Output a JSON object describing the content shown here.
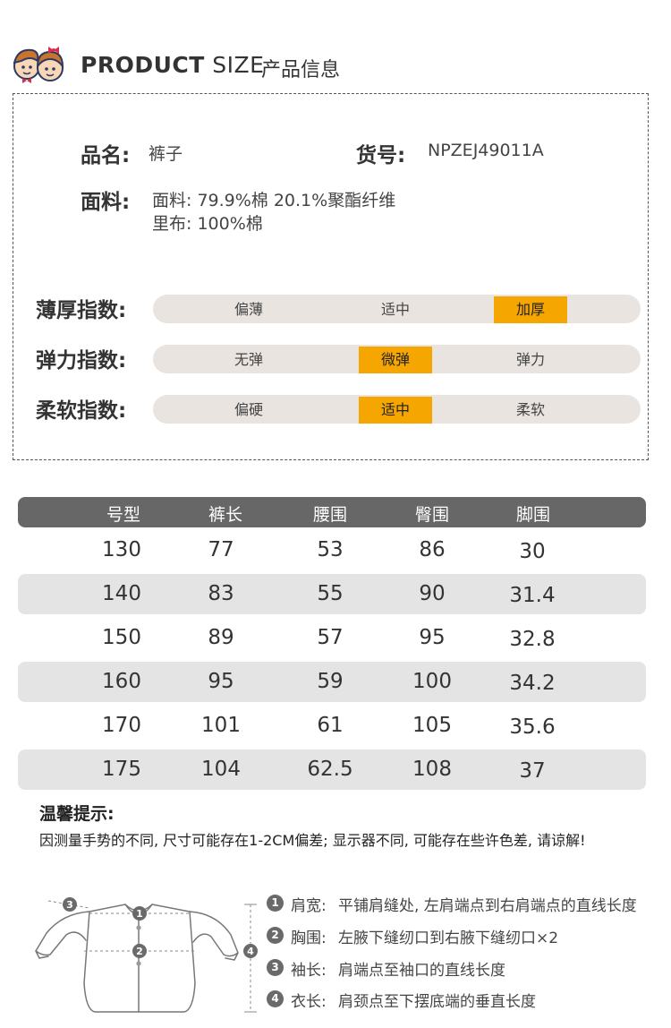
{
  "header": {
    "title_en_bold": "PRODUCT",
    "title_en_light": "SIZE",
    "title_cn": "产品信息"
  },
  "product": {
    "name_label": "品名:",
    "name_value": "裤子",
    "sku_label": "货号:",
    "sku_value": "NPZEJ49011A",
    "fabric_label": "面料:",
    "fabric_line1": "面料: 79.9%棉 20.1%聚酯纤维",
    "fabric_line2": "里布: 100%棉"
  },
  "indices": [
    {
      "label": "薄厚指数:",
      "options": [
        "偏薄",
        "适中",
        "加厚"
      ],
      "selected": 2
    },
    {
      "label": "弹力指数:",
      "options": [
        "无弹",
        "微弹",
        "弹力"
      ],
      "selected": 1
    },
    {
      "label": "柔软指数:",
      "options": [
        "偏硬",
        "适中",
        "柔软"
      ],
      "selected": 1
    }
  ],
  "size_table": {
    "headers": [
      "号型",
      "裤长",
      "腰围",
      "臀围",
      "脚围"
    ],
    "rows": [
      [
        "130",
        "77",
        "53",
        "86",
        "30"
      ],
      [
        "140",
        "83",
        "55",
        "90",
        "31.4"
      ],
      [
        "150",
        "89",
        "57",
        "95",
        "32.8"
      ],
      [
        "160",
        "95",
        "59",
        "100",
        "34.2"
      ],
      [
        "170",
        "101",
        "61",
        "105",
        "35.6"
      ],
      [
        "175",
        "104",
        "62.5",
        "108",
        "37"
      ]
    ]
  },
  "tips": {
    "title": "温馨提示:",
    "text": "因测量手势的不同, 尺寸可能存在1-2CM偏差; 显示器不同, 可能存在些许色差, 请谅解!"
  },
  "measure_guide": [
    {
      "num": "1",
      "key": "肩宽:",
      "desc": "平铺肩缝处, 左肩端点到右肩端点的直线长度"
    },
    {
      "num": "2",
      "key": "胸围:",
      "desc": "左腋下缝纫口到右腋下缝纫口×2"
    },
    {
      "num": "3",
      "key": "袖长:",
      "desc": "肩端点至袖口的直线长度"
    },
    {
      "num": "4",
      "key": "衣长:",
      "desc": "肩颈点至下摆底端的垂直长度"
    }
  ],
  "colors": {
    "accent": "#f5a600",
    "bar_bg": "#e9e4e0",
    "header_bg": "#676767",
    "row_shade": "#e4e4e4"
  }
}
